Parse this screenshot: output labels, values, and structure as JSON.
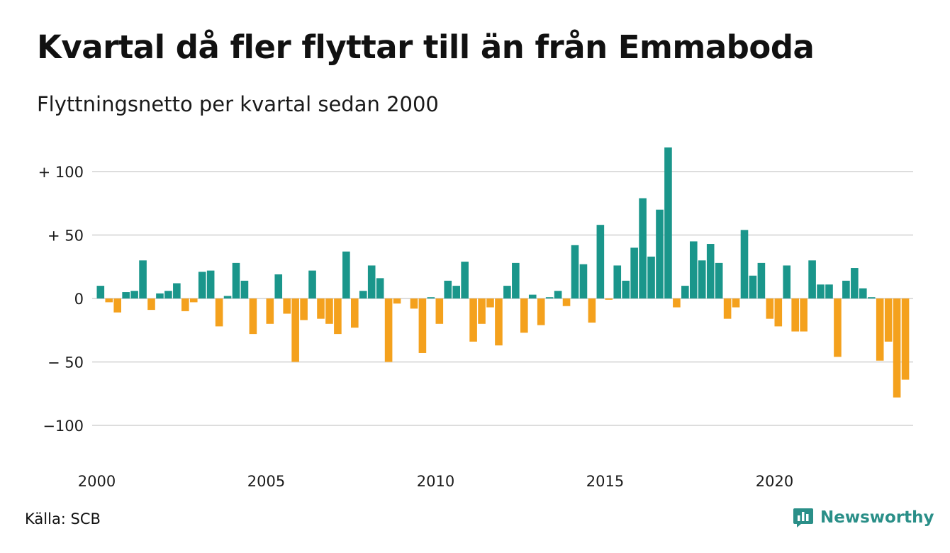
{
  "title": "Kvartal då fler flyttar till än från Emmaboda",
  "subtitle": "Flyttningsnetto per kvartal sedan 2000",
  "source": "Källa: SCB",
  "brand": {
    "name": "Newsworthy",
    "icon": "newsworthy-logo-icon",
    "color": "#2a8f88"
  },
  "colors": {
    "positive": "#1a968b",
    "negative": "#f4a11d",
    "grid": "#dddddd"
  },
  "chart_data": {
    "type": "bar",
    "title": "Kvartal då fler flyttar till än från Emmaboda",
    "subtitle": "Flyttningsnetto per kvartal sedan 2000",
    "xlabel": "",
    "ylabel": "",
    "ylim": [
      -125,
      125
    ],
    "xlim": [
      2000,
      2024
    ],
    "y_ticks": [
      {
        "value": 100,
        "label": "+ 100"
      },
      {
        "value": 50,
        "label": "+  50"
      },
      {
        "value": 0,
        "label": "0"
      },
      {
        "value": -50,
        "label": "− 50"
      },
      {
        "value": -100,
        "label": "−100"
      }
    ],
    "x_ticks": [
      {
        "value": 2000,
        "label": "2000"
      },
      {
        "value": 2005,
        "label": "2005"
      },
      {
        "value": 2010,
        "label": "2010"
      },
      {
        "value": 2015,
        "label": "2015"
      },
      {
        "value": 2020,
        "label": "2020"
      }
    ],
    "grid": true,
    "legend": "none",
    "start": "2000 Q1",
    "frequency": "quarterly",
    "values": [
      10,
      -3,
      -11,
      5,
      6,
      30,
      -9,
      4,
      6,
      12,
      -10,
      -3,
      21,
      22,
      -22,
      2,
      28,
      14,
      -28,
      0,
      -20,
      19,
      -12,
      -50,
      -17,
      22,
      -16,
      -20,
      -28,
      37,
      -23,
      6,
      26,
      16,
      -50,
      -4,
      0,
      -8,
      -43,
      1,
      -20,
      14,
      10,
      29,
      -34,
      -20,
      -7,
      -37,
      10,
      28,
      -27,
      3,
      -21,
      1,
      6,
      -6,
      42,
      27,
      -19,
      58,
      -1,
      26,
      14,
      40,
      79,
      33,
      70,
      119,
      -7,
      10,
      45,
      30,
      43,
      28,
      -16,
      -7,
      54,
      18,
      28,
      -16,
      -22,
      26,
      -26,
      -26,
      30,
      11,
      11,
      -46,
      14,
      24,
      8,
      1,
      -49,
      -34,
      -78,
      -64
    ]
  }
}
